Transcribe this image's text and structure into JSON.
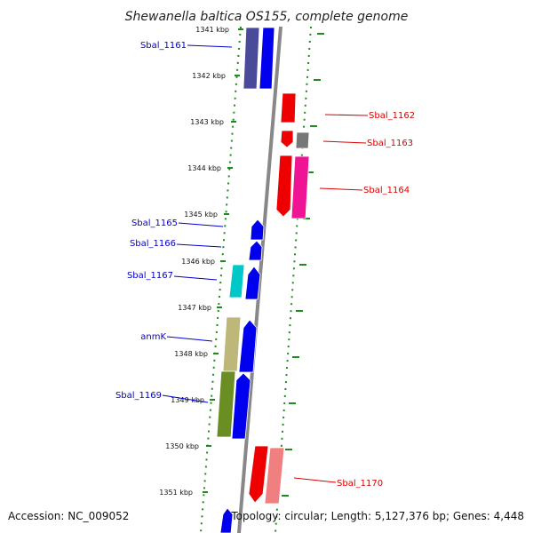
{
  "title": "Shewanella baltica OS155, complete genome",
  "accession": "Accession: NC_009052",
  "topology": "Topology: circular; Length: 5,127,376 bp; Genes: 4,448",
  "colors": {
    "backbone": "#888888",
    "dotted_guides": "#1f8a1f",
    "plus_label": "#0000cc",
    "minus_label": "#dd0000"
  },
  "ticks": [
    "1341 kbp",
    "1342 kbp",
    "1343 kbp",
    "1344 kbp",
    "1345 kbp",
    "1346 kbp",
    "1347 kbp",
    "1348 kbp",
    "1349 kbp",
    "1350 kbp",
    "1351 kbp"
  ],
  "labels": [
    {
      "text": "Sbal_1161",
      "strand": "plus"
    },
    {
      "text": "Sbal_1162",
      "strand": "minus"
    },
    {
      "text": "Sbal_1163",
      "strand": "minus"
    },
    {
      "text": "Sbal_1164",
      "strand": "minus"
    },
    {
      "text": "Sbal_1165",
      "strand": "plus"
    },
    {
      "text": "Sbal_1166",
      "strand": "plus"
    },
    {
      "text": "Sbal_1167",
      "strand": "plus"
    },
    {
      "text": "anmK",
      "strand": "plus"
    },
    {
      "text": "Sbal_1169",
      "strand": "plus"
    },
    {
      "text": "Sbal_1170",
      "strand": "minus"
    }
  ],
  "gene_colors": [
    "#4a4a9a",
    "#0000ee",
    "#ee0000",
    "#ee0000",
    "#777777",
    "#ee0000",
    "#ee1493",
    "#0000ee",
    "#0000ee",
    "#00c8c8",
    "#0000ee",
    "#bdb77a",
    "#0000ee",
    "#6b8e23",
    "#0000ee",
    "#ee0000",
    "#f08080",
    "#0000ee"
  ]
}
